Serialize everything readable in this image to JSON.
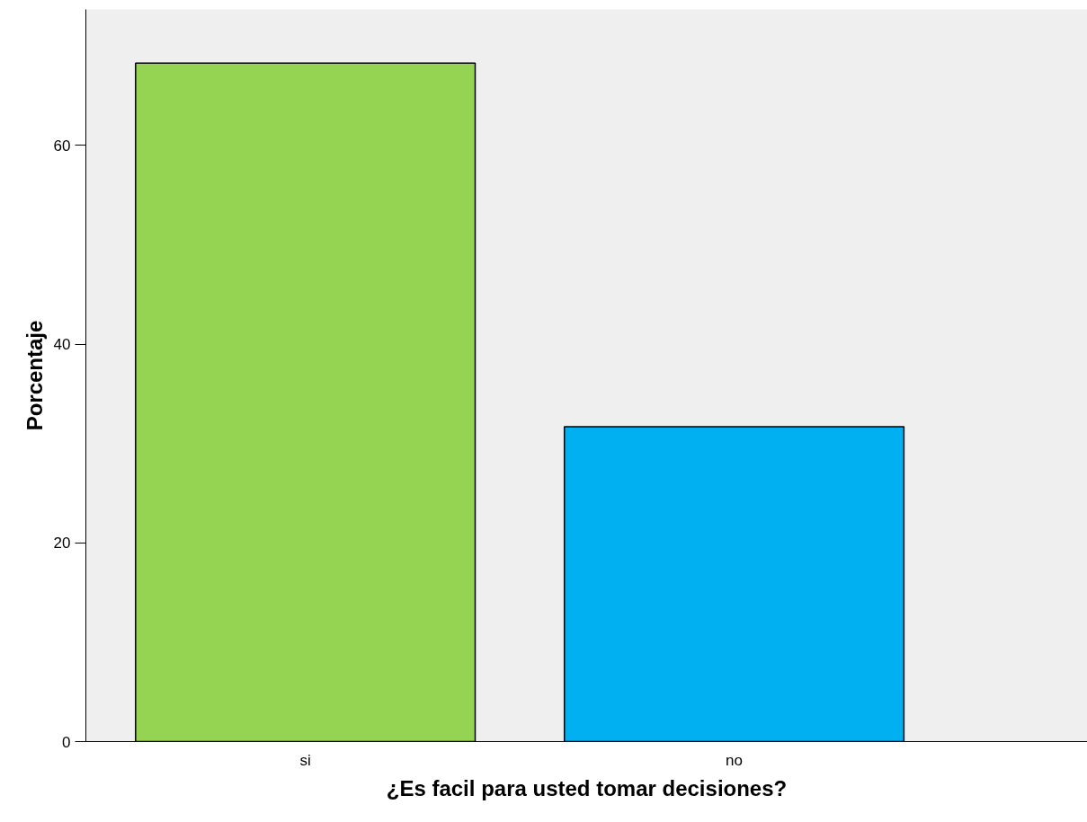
{
  "chart_data": {
    "type": "bar",
    "xlabel": "¿Es facil para usted tomar decisiones?",
    "ylabel": "Porcentaje",
    "categories": [
      "si",
      "no"
    ],
    "values": [
      68.3,
      31.7
    ],
    "colors": [
      "#95d352",
      "#00b0f0"
    ],
    "ylim": [
      0,
      73.7
    ],
    "yticks": [
      0,
      20,
      40,
      60
    ],
    "grid": false
  }
}
